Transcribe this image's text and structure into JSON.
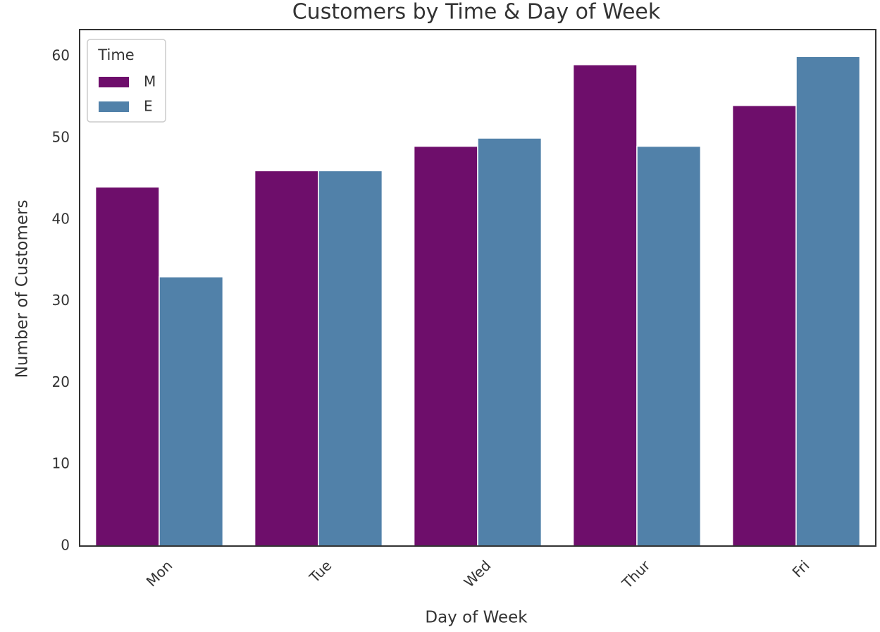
{
  "chart_data": {
    "type": "bar",
    "title": "Customers by Time & Day of Week",
    "x_label": "Day of Week",
    "y_label": "Number of Customers",
    "categories": [
      "Mon",
      "Tue",
      "Wed",
      "Thur",
      "Fri"
    ],
    "series": [
      {
        "name": "M",
        "color": "#6e0e6b",
        "values": [
          44,
          46,
          49,
          59,
          54
        ]
      },
      {
        "name": "E",
        "color": "#5181a9",
        "values": [
          33,
          46,
          50,
          49,
          60
        ]
      }
    ],
    "legend_title": "Time",
    "legend": "upper left",
    "ylim": [
      0,
      63.3
    ],
    "yticks": [
      0,
      10,
      20,
      30,
      40,
      50,
      60
    ],
    "grid": false
  }
}
